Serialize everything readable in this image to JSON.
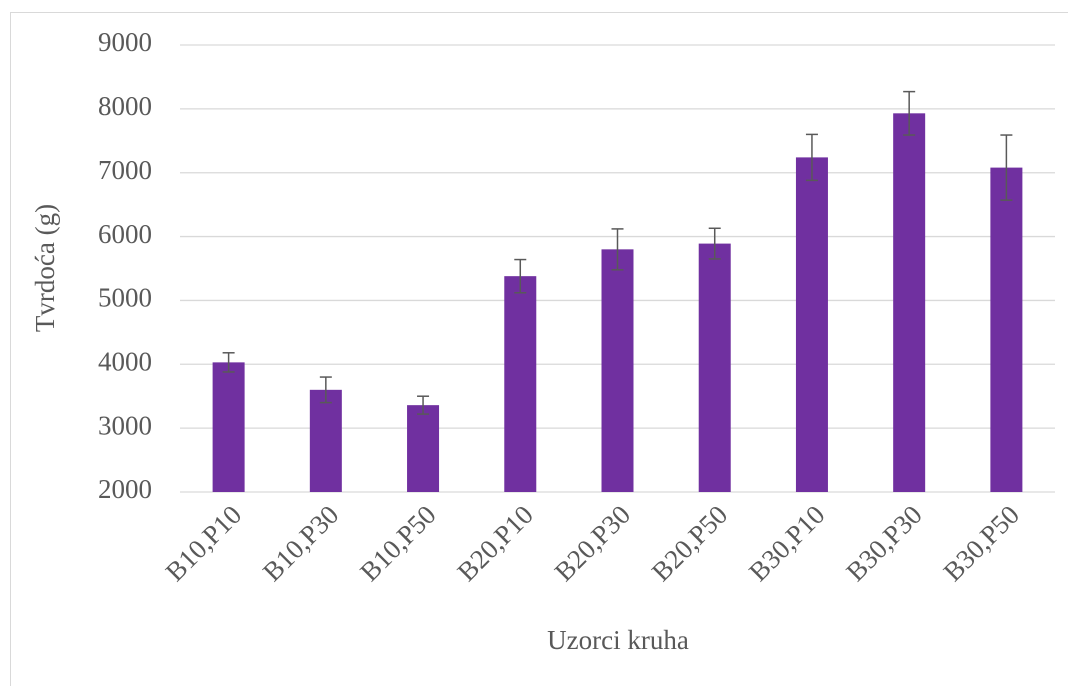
{
  "chart_data": {
    "type": "bar",
    "x_label": "Uzorci kruha",
    "y_label": "Tvrdoća (g)",
    "categories": [
      "B10,P10",
      "B10,P30",
      "B10,P50",
      "B20,P10",
      "B20,P30",
      "B20,P50",
      "B30,P10",
      "B30,P30",
      "B30,P50"
    ],
    "values": [
      4030,
      3600,
      3360,
      5380,
      5800,
      5890,
      7240,
      7930,
      7080
    ],
    "errors": [
      150,
      200,
      140,
      260,
      320,
      240,
      360,
      340,
      510
    ],
    "color": "#7030a0",
    "ylim": [
      2000,
      9000
    ],
    "yticks": [
      2000,
      3000,
      4000,
      5000,
      6000,
      7000,
      8000,
      9000
    ],
    "grid": true
  }
}
